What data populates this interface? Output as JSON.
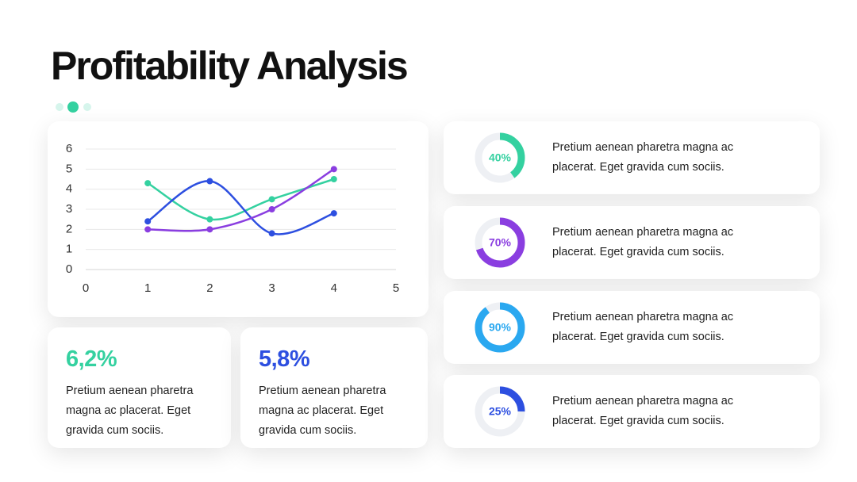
{
  "title": "Profitability Analysis",
  "chart_data": {
    "type": "line",
    "x": [
      1,
      2,
      3,
      4
    ],
    "series": [
      {
        "color": "#34d1a0",
        "values": [
          4.3,
          2.5,
          3.5,
          4.5
        ]
      },
      {
        "color": "#2d4fe0",
        "values": [
          2.4,
          4.4,
          1.8,
          2.8
        ]
      },
      {
        "color": "#8a3ee0",
        "values": [
          2,
          2,
          3,
          5
        ]
      }
    ],
    "xlim": [
      0,
      5
    ],
    "xticks": [
      0,
      1,
      2,
      3,
      4,
      5
    ],
    "ylim": [
      0,
      6
    ],
    "yticks": [
      0,
      1,
      2,
      3,
      4,
      5,
      6
    ],
    "grid": true,
    "smooth": true
  },
  "stats": [
    {
      "value": "6,2%",
      "color": "#34d1a0",
      "text": "Pretium aenean pharetra magna ac placerat. Eget gravida cum sociis."
    },
    {
      "value": "5,8%",
      "color": "#2d4fe0",
      "text": "Pretium aenean pharetra magna ac placerat. Eget gravida cum sociis."
    }
  ],
  "items": [
    {
      "value": 40,
      "label": "40%",
      "color": "#34d1a0",
      "text": "Pretium aenean pharetra magna ac placerat. Eget gravida cum sociis."
    },
    {
      "value": 70,
      "label": "70%",
      "color": "#8a3ee0",
      "text": "Pretium aenean pharetra magna ac placerat. Eget gravida cum sociis."
    },
    {
      "value": 90,
      "label": "90%",
      "color": "#2aa8f0",
      "text": "Pretium aenean pharetra magna ac placerat. Eget gravida cum sociis."
    },
    {
      "value": 25,
      "label": "25%",
      "color": "#2d4fe0",
      "text": "Pretium aenean pharetra magna ac placerat. Eget gravida cum sociis."
    }
  ]
}
